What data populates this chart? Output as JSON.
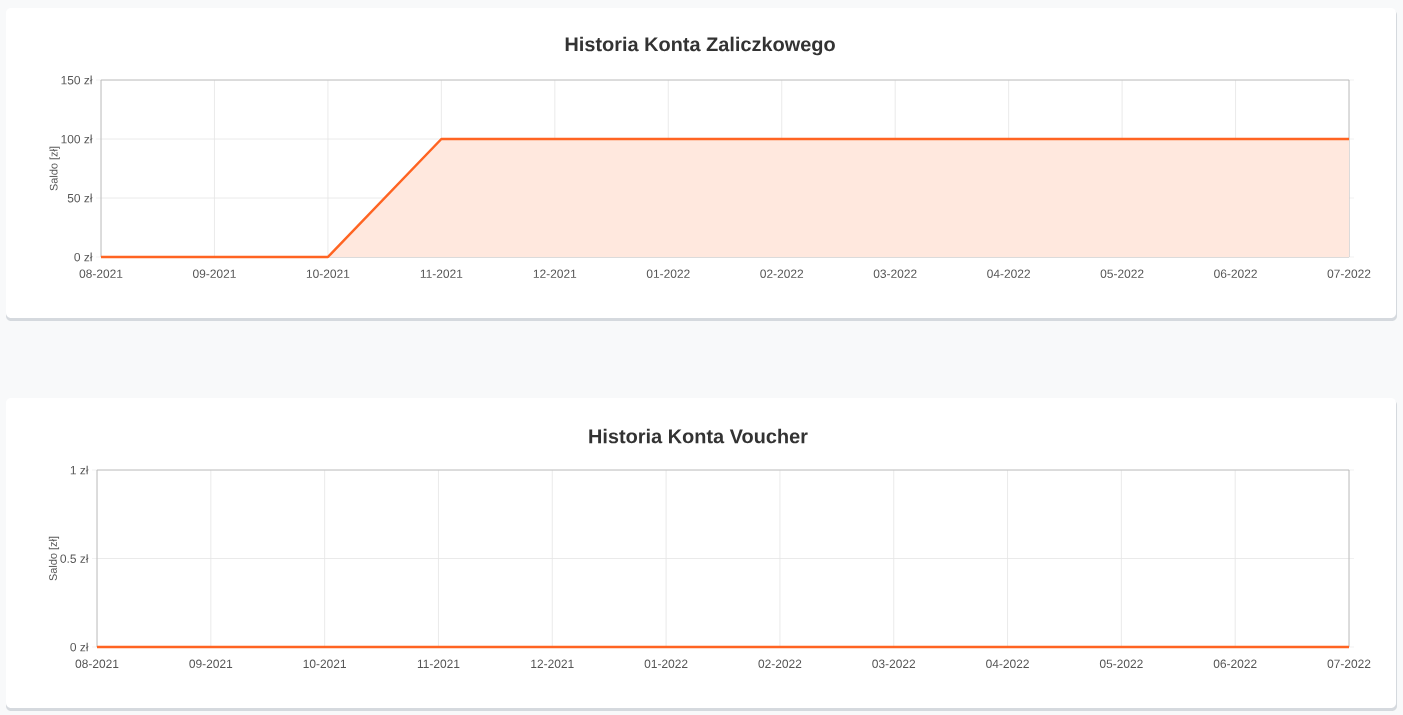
{
  "chart_data": [
    {
      "type": "area",
      "title": "Historia Konta Zaliczkowego",
      "ylabel": "Saldo [zł]",
      "categories": [
        "08-2021",
        "09-2021",
        "10-2021",
        "11-2021",
        "12-2021",
        "01-2022",
        "02-2022",
        "03-2022",
        "04-2022",
        "05-2022",
        "06-2022",
        "07-2022"
      ],
      "series": [
        {
          "color": "#ff6422",
          "values": [
            0,
            0,
            0,
            100,
            100,
            100,
            100,
            100,
            100,
            100,
            100,
            100
          ]
        }
      ],
      "ylim": [
        0,
        150
      ],
      "yticks": [
        {
          "value": 0,
          "label": "0 zł"
        },
        {
          "value": 50,
          "label": "50 zł"
        },
        {
          "value": 100,
          "label": "100 zł"
        },
        {
          "value": 150,
          "label": "150 zł"
        }
      ],
      "grid": true
    },
    {
      "type": "line",
      "title": "Historia Konta Voucher",
      "ylabel": "Saldo [zł]",
      "categories": [
        "08-2021",
        "09-2021",
        "10-2021",
        "11-2021",
        "12-2021",
        "01-2022",
        "02-2022",
        "03-2022",
        "04-2022",
        "05-2022",
        "06-2022",
        "07-2022"
      ],
      "series": [
        {
          "color": "#ff6422",
          "values": [
            0,
            0,
            0,
            0,
            0,
            0,
            0,
            0,
            0,
            0,
            0,
            0
          ]
        }
      ],
      "ylim": [
        0,
        1
      ],
      "yticks": [
        {
          "value": 0,
          "label": "0 zł"
        },
        {
          "value": 0.5,
          "label": "0.5 zł"
        },
        {
          "value": 1,
          "label": "1 zł"
        }
      ],
      "grid": true
    }
  ]
}
